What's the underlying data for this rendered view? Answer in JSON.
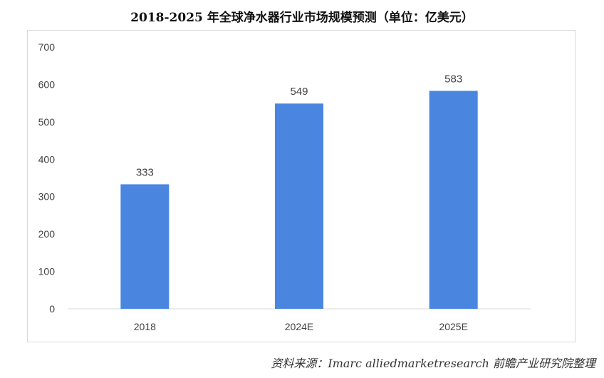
{
  "chart_data": {
    "type": "bar",
    "title": "2018-2025 年全球净水器行业市场规模预测（单位：亿美元）",
    "categories": [
      "2018",
      "2024E",
      "2025E"
    ],
    "values": [
      333,
      549,
      583
    ],
    "data_labels": [
      "333",
      "549",
      "583"
    ],
    "ylim": [
      0,
      700
    ],
    "yticks": [
      0,
      100,
      200,
      300,
      400,
      500,
      600,
      700
    ],
    "xlabel": "",
    "ylabel": "",
    "grid": false,
    "bar_color": "#4a86e0"
  },
  "source": "资料来源：Imarc alliedmarketresearch 前瞻产业研究院整理"
}
